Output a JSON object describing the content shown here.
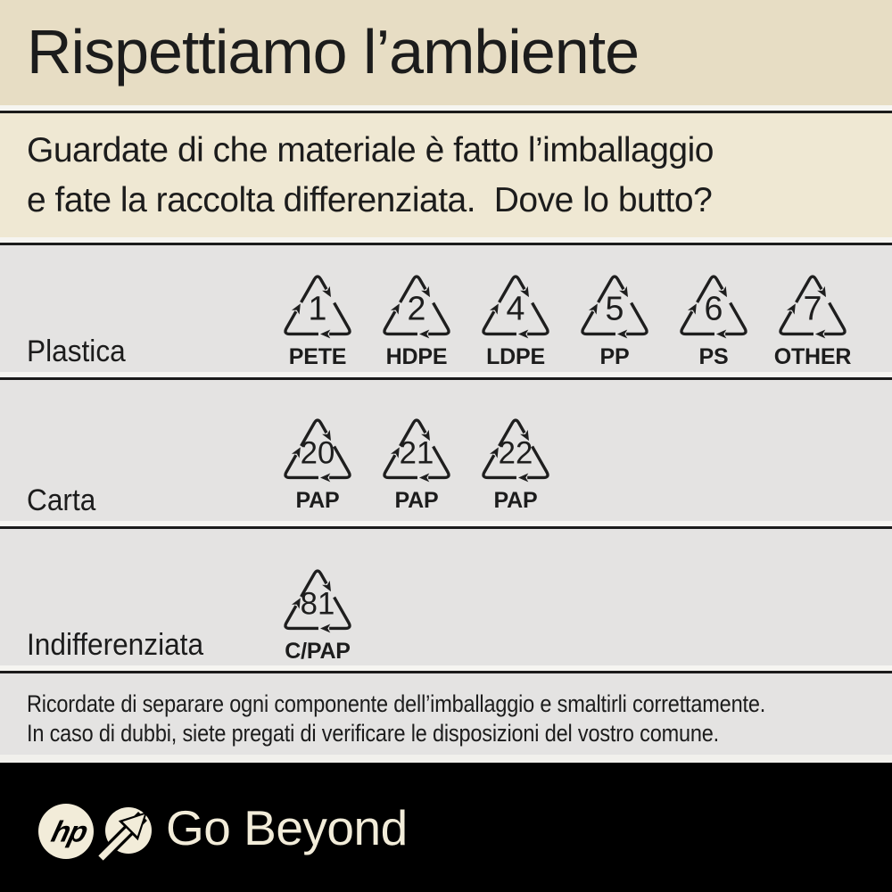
{
  "title": "Rispettiamo l’ambiente",
  "subtitle": {
    "line1": "Guardate di che materiale è fatto l’imballaggio",
    "line2": "e fate la raccolta differenziata.  Dove lo butto?"
  },
  "rows": [
    {
      "label": "Plastica",
      "symbols": [
        {
          "number": "1",
          "code": "PETE"
        },
        {
          "number": "2",
          "code": "HDPE"
        },
        {
          "number": "4",
          "code": "LDPE"
        },
        {
          "number": "5",
          "code": "PP"
        },
        {
          "number": "6",
          "code": "PS"
        },
        {
          "number": "7",
          "code": "OTHER"
        }
      ]
    },
    {
      "label": "Carta",
      "symbols": [
        {
          "number": "20",
          "code": "PAP"
        },
        {
          "number": "21",
          "code": "PAP"
        },
        {
          "number": "22",
          "code": "PAP"
        }
      ]
    },
    {
      "label": "Indifferenziata",
      "symbols": [
        {
          "number": "81",
          "code": "C/PAP"
        }
      ]
    }
  ],
  "note": {
    "line1": "Ricordate di separare ogni componente dell’imballaggio e smaltirli correttamente.",
    "line2": "In caso di dubbi, siete pregati di verificare le disposizioni del vostro comune."
  },
  "footer": {
    "brand": "hp",
    "tagline": "Go Beyond"
  },
  "colors": {
    "beige_top": "#e7ddc4",
    "beige_sub": "#efe8d3",
    "panel_gray": "#e4e3e2",
    "ink": "#1c1c1c",
    "footer_bg": "#000000",
    "footer_cream": "#f2ecd9"
  }
}
